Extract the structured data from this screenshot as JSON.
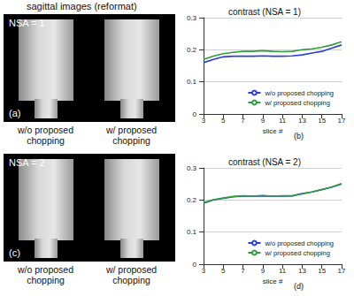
{
  "title": "sagittal images (reformat)",
  "image_panels": [
    {
      "letter": "(a)",
      "label": "NSA = 1",
      "captions": [
        "w/o proposed chopping",
        "w/ proposed chopping"
      ]
    },
    {
      "letter": "(c)",
      "label": "NSA = 2",
      "captions": [
        "w/o proposed chopping",
        "w/ proposed chopping"
      ]
    }
  ],
  "chart_data": [
    {
      "type": "line",
      "title": "contrast (NSA = 1)",
      "x_label": "slice #",
      "annotations": [
        "(b)"
      ],
      "x": [
        3,
        4,
        5,
        6,
        7,
        8,
        9,
        10,
        11,
        12,
        13,
        14,
        15,
        16,
        17
      ],
      "series": [
        {
          "name": "w/o proposed chopping",
          "color": "#2a3fd4",
          "values": [
            0.16,
            0.17,
            0.178,
            0.18,
            0.18,
            0.18,
            0.181,
            0.18,
            0.18,
            0.181,
            0.184,
            0.19,
            0.195,
            0.205,
            0.215
          ]
        },
        {
          "name": "w/ proposed chopping",
          "color": "#2e9e3a",
          "values": [
            0.17,
            0.18,
            0.188,
            0.192,
            0.195,
            0.195,
            0.197,
            0.195,
            0.194,
            0.195,
            0.2,
            0.203,
            0.208,
            0.215,
            0.225
          ]
        }
      ],
      "xlim": [
        3,
        17
      ],
      "xticks": [
        3,
        5,
        7,
        9,
        11,
        13,
        15,
        17
      ],
      "ylim": [
        0,
        0.3
      ],
      "yticks": [
        0,
        0.1,
        0.2,
        0.3
      ],
      "grid": true,
      "legend": "lower right"
    },
    {
      "type": "line",
      "title": "contrast (NSA = 2)",
      "x_label": "slice #",
      "annotations": [
        "(d)"
      ],
      "x": [
        3,
        4,
        5,
        6,
        7,
        8,
        9,
        10,
        11,
        12,
        13,
        14,
        15,
        16,
        17
      ],
      "series": [
        {
          "name": "w/o proposed chopping",
          "color": "#2a3fd4",
          "values": [
            0.19,
            0.2,
            0.205,
            0.21,
            0.212,
            0.212,
            0.213,
            0.212,
            0.212,
            0.213,
            0.22,
            0.225,
            0.232,
            0.24,
            0.25
          ]
        },
        {
          "name": "w/ proposed chopping",
          "color": "#2e9e3a",
          "values": [
            0.192,
            0.201,
            0.206,
            0.211,
            0.213,
            0.212,
            0.214,
            0.212,
            0.213,
            0.213,
            0.219,
            0.225,
            0.233,
            0.24,
            0.251
          ]
        }
      ],
      "xlim": [
        3,
        17
      ],
      "xticks": [
        3,
        5,
        7,
        9,
        11,
        13,
        15,
        17
      ],
      "ylim": [
        0,
        0.3
      ],
      "yticks": [
        0,
        0.1,
        0.2,
        0.3
      ],
      "grid": true,
      "legend": "lower right"
    }
  ]
}
